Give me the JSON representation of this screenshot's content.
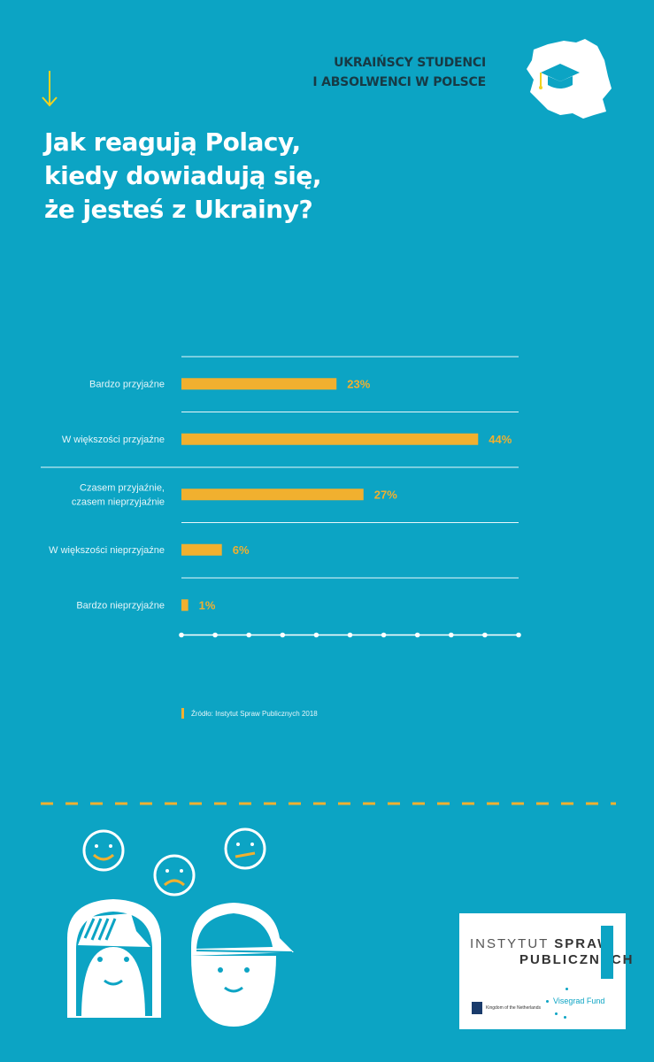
{
  "badge": {
    "line1": "UKRAIŃSCY STUDENCI",
    "line2": "I ABSOLWENCI W POLSCE"
  },
  "title": {
    "line1": "Jak reagują Polacy,",
    "line2": "kiedy dowiadują się,",
    "line3": "że jesteś z Ukrainy?"
  },
  "colors": {
    "background": "#0ca4c4",
    "bar": "#f1b02f",
    "badge_text": "#173a45"
  },
  "chart_data": {
    "type": "bar",
    "orientation": "horizontal",
    "categories": [
      [
        "Bardzo przyjaźne"
      ],
      [
        "W większości przyjaźne"
      ],
      [
        "Czasem przyjaźnie,",
        "czasem nieprzyjaźnie"
      ],
      [
        "W większości nieprzyjaźne"
      ],
      [
        "Bardzo nieprzyjaźne"
      ]
    ],
    "values": [
      23,
      44,
      27,
      6,
      1
    ],
    "value_labels": [
      "23%",
      "44%",
      "27%",
      "6%",
      "1%"
    ],
    "xlim": [
      0,
      50
    ],
    "title": "",
    "xlabel": "",
    "ylabel": ""
  },
  "source": "Źródło: Instytut Spraw Publicznych 2018",
  "footer": {
    "isp_line1_a": "INSTYTUT",
    "isp_line1_b": "SPRAW",
    "isp_line2": "PUBLICZNYCH",
    "nl_label": "Kingdom of the Netherlands",
    "vf_label": "Visegrad Fund"
  },
  "icons": [
    "down-arrow-icon",
    "graduation-cap-icon",
    "poland-map-icon",
    "smiley-happy-icon",
    "smiley-sad-icon",
    "smiley-neutral-icon",
    "girl-face-icon",
    "boy-cap-face-icon"
  ]
}
